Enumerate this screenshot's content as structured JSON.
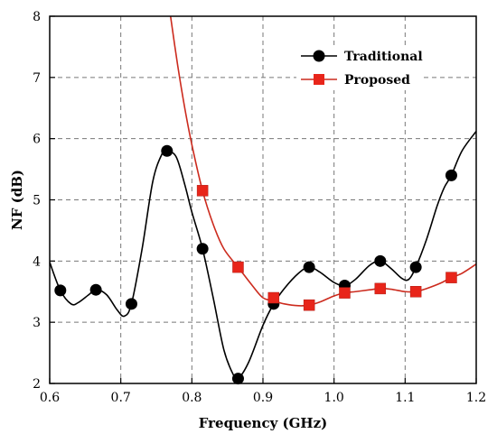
{
  "chart_data": {
    "type": "line",
    "title": "",
    "xlabel": "Frequency  (GHz)",
    "ylabel": "NF (dB)",
    "xlim": [
      0.6,
      1.2
    ],
    "ylim": [
      2,
      8
    ],
    "x_ticks": [
      "0.6",
      "0.7",
      "0.8",
      "0.9",
      "1.0",
      "1.1",
      "1.2"
    ],
    "y_ticks": [
      "2",
      "3",
      "4",
      "5",
      "6",
      "7",
      "8"
    ],
    "grid": true,
    "legend_position": "top-right",
    "series": [
      {
        "name": "Traditional",
        "color": "#000000",
        "marker": "circle",
        "markers_x": [
          0.615,
          0.665,
          0.715,
          0.765,
          0.815,
          0.865,
          0.915,
          0.965,
          1.015,
          1.065,
          1.115,
          1.165
        ],
        "markers_y": [
          3.52,
          3.53,
          3.3,
          5.8,
          4.2,
          2.08,
          3.3,
          3.9,
          3.6,
          4.0,
          3.9,
          5.4
        ],
        "curve_x": [
          0.6,
          0.615,
          0.63,
          0.64,
          0.655,
          0.665,
          0.68,
          0.695,
          0.705,
          0.715,
          0.73,
          0.745,
          0.758,
          0.765,
          0.778,
          0.79,
          0.8,
          0.815,
          0.83,
          0.845,
          0.858,
          0.865,
          0.88,
          0.9,
          0.915,
          0.93,
          0.95,
          0.965,
          0.98,
          1.0,
          1.015,
          1.03,
          1.05,
          1.065,
          1.08,
          1.095,
          1.105,
          1.115,
          1.13,
          1.145,
          1.155,
          1.165,
          1.18,
          1.2
        ],
        "curve_y": [
          3.98,
          3.52,
          3.3,
          3.32,
          3.45,
          3.53,
          3.45,
          3.2,
          3.1,
          3.3,
          4.2,
          5.3,
          5.75,
          5.8,
          5.7,
          5.25,
          4.8,
          4.2,
          3.4,
          2.55,
          2.15,
          2.08,
          2.35,
          2.95,
          3.3,
          3.55,
          3.8,
          3.9,
          3.82,
          3.65,
          3.6,
          3.7,
          3.93,
          4.0,
          3.88,
          3.72,
          3.7,
          3.9,
          4.35,
          4.9,
          5.2,
          5.4,
          5.8,
          6.12
        ]
      },
      {
        "name": "Proposed",
        "color": "#cc2b1e",
        "marker_color": "#e8251a",
        "marker": "square",
        "markers_x": [
          0.815,
          0.865,
          0.915,
          0.965,
          1.015,
          1.065,
          1.115,
          1.165
        ],
        "markers_y": [
          5.15,
          3.9,
          3.4,
          3.28,
          3.48,
          3.55,
          3.5,
          3.73
        ],
        "curve_x": [
          0.77,
          0.78,
          0.79,
          0.8,
          0.815,
          0.83,
          0.845,
          0.865,
          0.885,
          0.9,
          0.915,
          0.93,
          0.95,
          0.965,
          0.98,
          1.0,
          1.015,
          1.03,
          1.05,
          1.065,
          1.08,
          1.1,
          1.115,
          1.13,
          1.15,
          1.165,
          1.18,
          1.2
        ],
        "curve_y": [
          8.0,
          7.2,
          6.5,
          5.9,
          5.15,
          4.6,
          4.2,
          3.9,
          3.6,
          3.4,
          3.35,
          3.3,
          3.27,
          3.28,
          3.33,
          3.43,
          3.48,
          3.5,
          3.53,
          3.55,
          3.54,
          3.5,
          3.5,
          3.55,
          3.64,
          3.73,
          3.8,
          3.95
        ]
      }
    ]
  }
}
